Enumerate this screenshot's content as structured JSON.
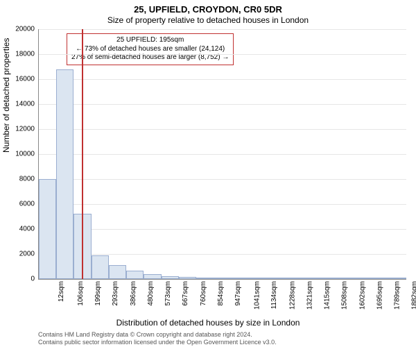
{
  "title_main": "25, UPFIELD, CROYDON, CR0 5DR",
  "title_sub": "Size of property relative to detached houses in London",
  "yaxis": {
    "label": "Number of detached properties",
    "min": 0,
    "max": 20000,
    "step": 2000,
    "ticks": [
      0,
      2000,
      4000,
      6000,
      8000,
      10000,
      12000,
      14000,
      16000,
      18000,
      20000
    ]
  },
  "xaxis": {
    "label": "Distribution of detached houses by size in London",
    "ticks": [
      "12sqm",
      "106sqm",
      "199sqm",
      "293sqm",
      "386sqm",
      "480sqm",
      "573sqm",
      "667sqm",
      "760sqm",
      "854sqm",
      "947sqm",
      "1041sqm",
      "1134sqm",
      "1228sqm",
      "1321sqm",
      "1415sqm",
      "1508sqm",
      "1602sqm",
      "1695sqm",
      "1789sqm",
      "1882sqm"
    ]
  },
  "histogram": {
    "type": "histogram",
    "bar_color": "#dbe5f1",
    "bar_border_color": "#9aaed0",
    "grid_color": "#e6e6e6",
    "marker_color": "#c03030",
    "values": [
      8000,
      16800,
      5200,
      1900,
      1100,
      650,
      400,
      250,
      160,
      110,
      80,
      60,
      45,
      35,
      28,
      22,
      18,
      14,
      11,
      9,
      7
    ]
  },
  "marker": {
    "position_sqm": 195,
    "annotation_lines": [
      "25 UPFIELD: 195sqm",
      "← 73% of detached houses are smaller (24,124)",
      "27% of semi-detached houses are larger (8,752) →"
    ]
  },
  "footer_lines": [
    "Contains HM Land Registry data © Crown copyright and database right 2024.",
    "Contains public sector information licensed under the Open Government Licence v3.0."
  ]
}
